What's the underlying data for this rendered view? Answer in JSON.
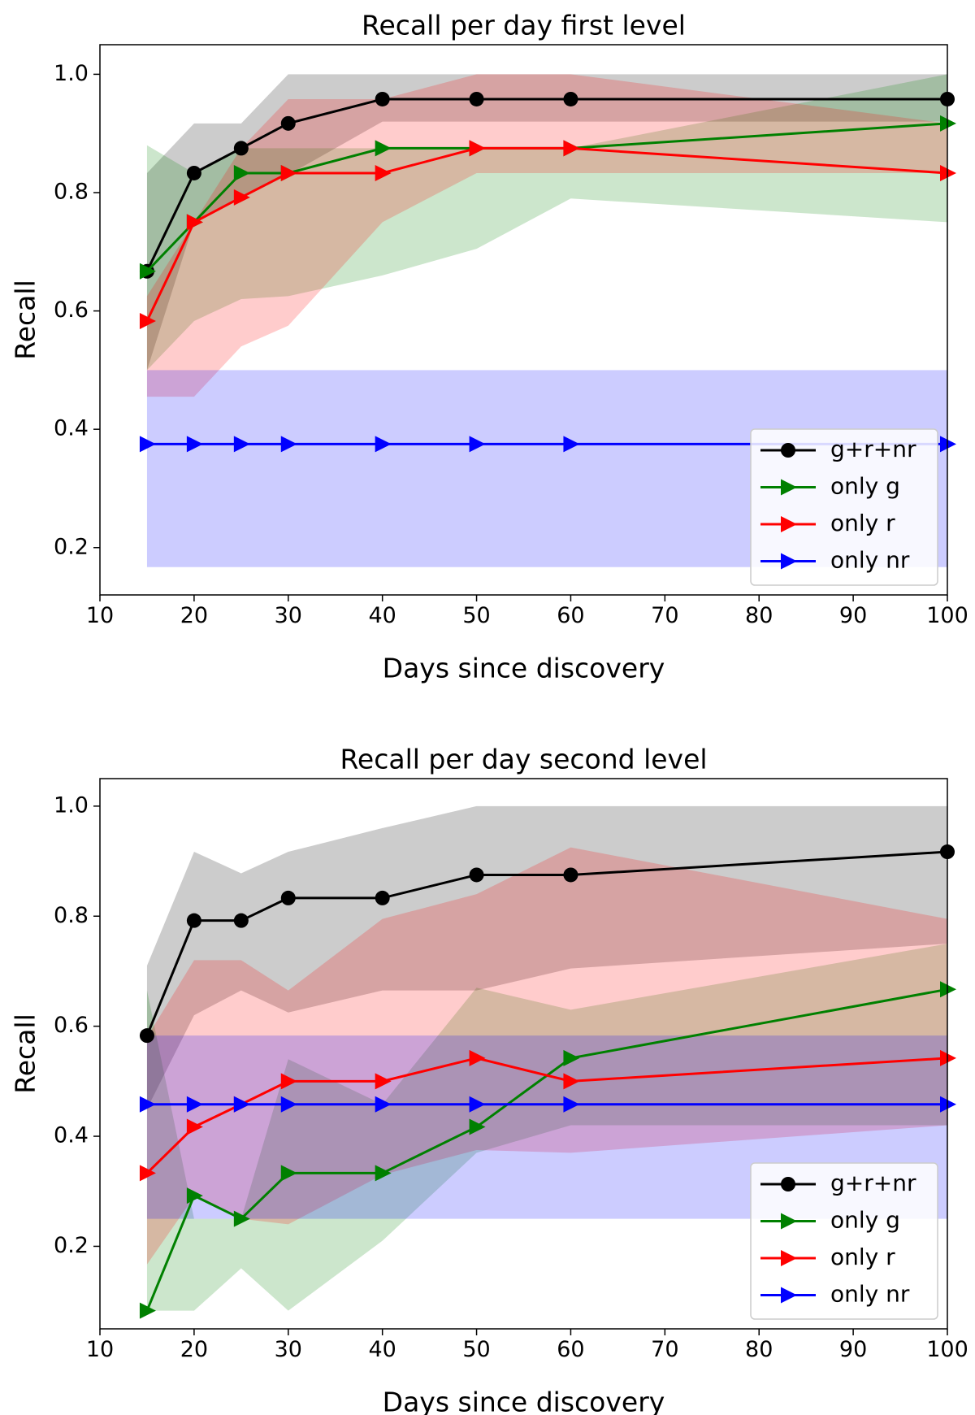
{
  "chart_data": [
    {
      "type": "line",
      "title": "Recall per day first level",
      "xlabel": "Days since discovery",
      "ylabel": "Recall",
      "xlim": [
        10,
        100
      ],
      "ylim": [
        0.12,
        1.05
      ],
      "xticks": [
        10,
        20,
        30,
        40,
        50,
        60,
        70,
        80,
        90,
        100
      ],
      "yticks": [
        0.2,
        0.4,
        0.6,
        0.8,
        1.0
      ],
      "x": [
        15,
        20,
        25,
        30,
        40,
        50,
        60,
        100
      ],
      "legend_position": "lower-right",
      "series": [
        {
          "name": "g+r+nr",
          "color": "#000000",
          "marker": "circle",
          "values": [
            0.667,
            0.833,
            0.875,
            0.917,
            0.958,
            0.958,
            0.958,
            0.958
          ],
          "band_low": [
            0.5,
            0.75,
            0.79,
            0.83,
            0.92,
            0.92,
            0.92,
            0.92
          ],
          "band_high": [
            0.833,
            0.917,
            0.917,
            1.0,
            1.0,
            1.0,
            1.0,
            1.0
          ]
        },
        {
          "name": "only g",
          "color": "#008000",
          "marker": "triangle",
          "values": [
            0.667,
            0.75,
            0.833,
            0.833,
            0.875,
            0.875,
            0.875,
            0.917
          ],
          "band_low": [
            0.5,
            0.583,
            0.62,
            0.625,
            0.66,
            0.705,
            0.79,
            0.75
          ],
          "band_high": [
            0.88,
            0.833,
            0.875,
            0.875,
            0.875,
            0.875,
            0.875,
            1.0
          ]
        },
        {
          "name": "only r",
          "color": "#ff0000",
          "marker": "triangle",
          "values": [
            0.583,
            0.75,
            0.792,
            0.833,
            0.833,
            0.875,
            0.875,
            0.833
          ],
          "band_low": [
            0.455,
            0.455,
            0.54,
            0.575,
            0.75,
            0.833,
            0.833,
            0.833
          ],
          "band_high": [
            0.625,
            0.75,
            0.875,
            0.958,
            0.958,
            1.0,
            1.0,
            0.917
          ]
        },
        {
          "name": "only nr",
          "color": "#0000ff",
          "marker": "triangle",
          "values": [
            0.375,
            0.375,
            0.375,
            0.375,
            0.375,
            0.375,
            0.375,
            0.375
          ],
          "band_low": [
            0.167,
            0.167,
            0.167,
            0.167,
            0.167,
            0.167,
            0.167,
            0.167
          ],
          "band_high": [
            0.5,
            0.5,
            0.5,
            0.5,
            0.5,
            0.5,
            0.5,
            0.5
          ]
        }
      ]
    },
    {
      "type": "line",
      "title": "Recall per day second level",
      "xlabel": "Days since discovery",
      "ylabel": "Recall",
      "xlim": [
        10,
        100
      ],
      "ylim": [
        0.05,
        1.05
      ],
      "xticks": [
        10,
        20,
        30,
        40,
        50,
        60,
        70,
        80,
        90,
        100
      ],
      "yticks": [
        0.2,
        0.4,
        0.6,
        0.8,
        1.0
      ],
      "x": [
        15,
        20,
        25,
        30,
        40,
        50,
        60,
        100
      ],
      "legend_position": "lower-right",
      "series": [
        {
          "name": "g+r+nr",
          "color": "#000000",
          "marker": "circle",
          "values": [
            0.583,
            0.792,
            0.792,
            0.833,
            0.833,
            0.875,
            0.875,
            0.917
          ],
          "band_low": [
            0.45,
            0.62,
            0.665,
            0.625,
            0.665,
            0.665,
            0.705,
            0.75
          ],
          "band_high": [
            0.71,
            0.917,
            0.878,
            0.917,
            0.96,
            1.0,
            1.0,
            1.0
          ]
        },
        {
          "name": "only g",
          "color": "#008000",
          "marker": "triangle",
          "values": [
            0.083,
            0.292,
            0.25,
            0.333,
            0.333,
            0.417,
            0.542,
            0.667
          ],
          "band_low": [
            0.083,
            0.083,
            0.16,
            0.083,
            0.21,
            0.37,
            0.42,
            0.42
          ],
          "band_high": [
            0.665,
            0.25,
            0.25,
            0.54,
            0.458,
            0.67,
            0.63,
            0.75
          ]
        },
        {
          "name": "only r",
          "color": "#ff0000",
          "marker": "triangle",
          "values": [
            0.333,
            0.417,
            0.458,
            0.5,
            0.5,
            0.542,
            0.5,
            0.542
          ],
          "band_low": [
            0.167,
            0.29,
            0.25,
            0.24,
            0.33,
            0.375,
            0.37,
            0.42
          ],
          "band_high": [
            0.58,
            0.72,
            0.72,
            0.665,
            0.795,
            0.84,
            0.925,
            0.795
          ]
        },
        {
          "name": "only nr",
          "color": "#0000ff",
          "marker": "triangle",
          "values": [
            0.458,
            0.458,
            0.458,
            0.458,
            0.458,
            0.458,
            0.458,
            0.458
          ],
          "band_low": [
            0.25,
            0.25,
            0.25,
            0.25,
            0.25,
            0.25,
            0.25,
            0.25
          ],
          "band_high": [
            0.583,
            0.583,
            0.583,
            0.583,
            0.583,
            0.583,
            0.583,
            0.583
          ]
        }
      ]
    }
  ]
}
